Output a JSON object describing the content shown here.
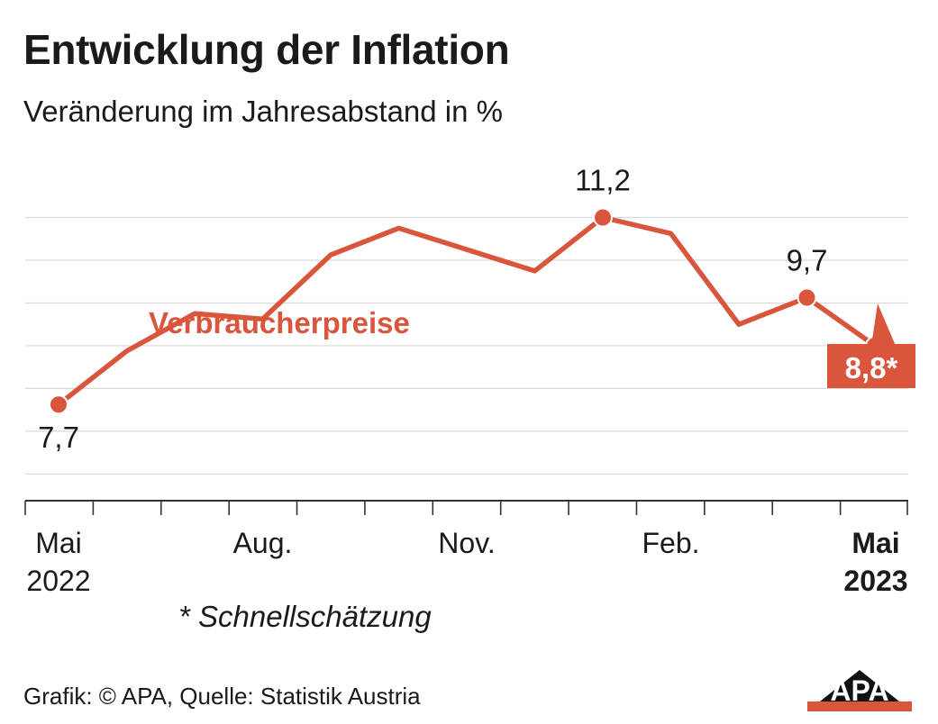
{
  "title": "Entwicklung der Inflation",
  "subtitle": "Veränderung im Jahresabstand in %",
  "footnote": "* Schnellschätzung",
  "source": "Grafik: © APA, Quelle: Statistik Austria",
  "logo_text": "APA",
  "colors": {
    "series": "#d9553b",
    "grid": "#d9d9d9",
    "axis": "#333333",
    "text": "#1a1a1a"
  },
  "chart_data": {
    "type": "line",
    "title": "Entwicklung der Inflation",
    "subtitle": "Veränderung im Jahresabstand in %",
    "xlabel": "",
    "ylabel": "Veränderung im Jahresabstand in %",
    "grid": true,
    "ylim": [
      5.9,
      11.9
    ],
    "y_gridlines": [
      6.4,
      7.2,
      8.0,
      8.8,
      9.6,
      10.4,
      11.2
    ],
    "x_tick_labels": [
      {
        "index": 0,
        "label": "Mai",
        "sublabel": "2022",
        "bold": false
      },
      {
        "index": 3,
        "label": "Aug.",
        "sublabel": "",
        "bold": false
      },
      {
        "index": 6,
        "label": "Nov.",
        "sublabel": "",
        "bold": false
      },
      {
        "index": 9,
        "label": "Feb.",
        "sublabel": "",
        "bold": false
      },
      {
        "index": 12,
        "label": "Mai",
        "sublabel": "2023",
        "bold": true
      }
    ],
    "x": [
      "2022-05",
      "2022-06",
      "2022-07",
      "2022-08",
      "2022-09",
      "2022-10",
      "2022-11",
      "2022-12",
      "2023-01",
      "2023-02",
      "2023-03",
      "2023-04",
      "2023-05"
    ],
    "series": [
      {
        "name": "Verbraucherpreise",
        "values": [
          7.7,
          8.7,
          9.4,
          9.3,
          10.5,
          11.0,
          10.6,
          10.2,
          11.2,
          10.9,
          9.2,
          9.7,
          8.8
        ]
      }
    ],
    "markers": [
      {
        "index": 0,
        "label": "7,7",
        "style": "plain"
      },
      {
        "index": 8,
        "label": "11,2",
        "style": "plain"
      },
      {
        "index": 11,
        "label": "9,7",
        "style": "plain"
      },
      {
        "index": 12,
        "label": "8,8*",
        "style": "callout"
      }
    ]
  }
}
